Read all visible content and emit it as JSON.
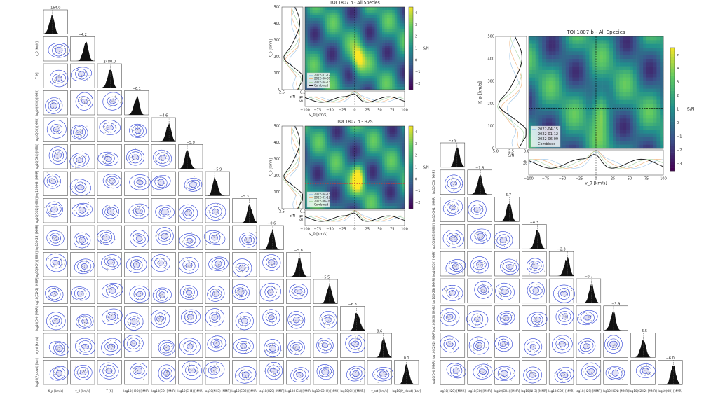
{
  "left_corner": {
    "titles": [
      "164.0",
      "−4.2",
      "2480.0",
      "−6.1",
      "−4.6",
      "−5.9",
      "−5.9",
      "−5.3",
      "−0.6",
      "−5.8",
      "−5.5",
      "−6.3",
      "8.6",
      "0.1"
    ],
    "labels": [
      "K_p [km/s]",
      "v_0 [km/s]",
      "T [K]",
      "log10(H2O) [MMR]",
      "log10(CO) [MMR]",
      "log10(CH4) [MMR]",
      "log10(NH3) [MMR]",
      "log10(CO2) [MMR]",
      "log10(H2S) [MMR]",
      "log10(HCN) [MMR]",
      "log10(C2H2) [MMR]",
      "log10(OH) [MMR]",
      "v_rot [km/s]",
      "log10(P_cloud) [bar]"
    ]
  },
  "right_corner": {
    "titles": [
      "−5.9",
      "−1.8",
      "−5.7",
      "−4.3",
      "−2.3",
      "−0.7",
      "−3.9",
      "−5.5",
      "−6.0"
    ],
    "labels": [
      "log10(H2O) [MMR]",
      "log10(CO) [MMR]",
      "log10(CH4) [MMR]",
      "log10(NH3) [MMR]",
      "log10(CO2) [MMR]",
      "log10(H2S) [MMR]",
      "log10(HCN) [MMR]",
      "log10(C2H2) [MMR]",
      "log10(OH) [MMR]"
    ]
  },
  "ccf_panels": [
    {
      "title": "TOI 1807 b - All Species",
      "ylabel": "K_p [km/s]",
      "xlabel": "v_0 [km/s]",
      "sn_label": "S/N",
      "cbar_label": "S/N",
      "legend": [
        "2022-01-12",
        "2022-06-09",
        "2022-04-15",
        "Combined"
      ],
      "xticks": [
        "−100",
        "−75",
        "−50",
        "−25",
        "0",
        "25",
        "50",
        "75",
        "100"
      ],
      "yticks": [
        "0",
        "100",
        "200",
        "300",
        "400",
        "500"
      ],
      "cbar_ticks": [
        "−2",
        "−1",
        "0",
        "1",
        "2",
        "3",
        "4"
      ],
      "side_ticks": [
        "2.5",
        "0.0"
      ]
    },
    {
      "title": "TOI 1807 b - H2S",
      "ylabel": "K_p [km/s]",
      "xlabel": "v_0 [km/s]",
      "sn_label": "S/N",
      "cbar_label": "S/N",
      "legend": [
        "2022-04-15",
        "2022-01-12",
        "2022-06-09",
        "Combined"
      ],
      "xticks": [
        "−100",
        "−75",
        "−50",
        "−25",
        "0",
        "25",
        "50",
        "75",
        "100"
      ],
      "yticks": [
        "0",
        "100",
        "200",
        "300",
        "400",
        "500"
      ],
      "cbar_ticks": [
        "−2",
        "−1",
        "0",
        "1",
        "2",
        "3",
        "4"
      ],
      "side_ticks": [
        "2.5",
        "0.0"
      ]
    },
    {
      "title": "TOI 1807 b - All Species",
      "ylabel": "K_p [km/s]",
      "xlabel": "v_0 [km/s]",
      "sn_label": "S/N",
      "cbar_label": "S/N",
      "legend": [
        "2022-04-15",
        "2022-01-12",
        "2022-06-09",
        "Combined"
      ],
      "xticks": [
        "−100",
        "−75",
        "−50",
        "−25",
        "0",
        "25",
        "50",
        "75",
        "100"
      ],
      "yticks": [
        "0",
        "100",
        "200",
        "300",
        "400",
        "500"
      ],
      "cbar_ticks": [
        "−3",
        "−2",
        "−1",
        "0",
        "1",
        "2",
        "3",
        "4",
        "5"
      ],
      "side_ticks": [
        "5.0",
        "2.5",
        "0.0"
      ]
    }
  ]
}
